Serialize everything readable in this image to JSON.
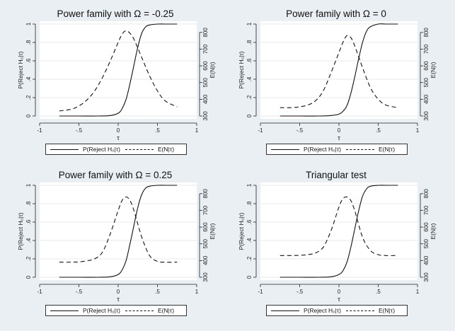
{
  "chart_data": [
    {
      "type": "line",
      "title": "Power family with Ω = -0.25",
      "xlabel": "τ",
      "ylabel_left": "P(Reject H₀|τ)",
      "ylabel_right": "E(N|τ)",
      "xlim": [
        -1,
        1
      ],
      "xticks": [
        "-1",
        "-.5",
        "0",
        ".5",
        "1"
      ],
      "ylim_left": [
        0,
        1
      ],
      "yticks_left": [
        "0",
        ".2",
        ".4",
        ".6",
        ".8",
        "1"
      ],
      "ylim_right": [
        300,
        850
      ],
      "yticks_right": [
        "300",
        "400",
        "500",
        "600",
        "700",
        "800"
      ],
      "grid": true,
      "legend": [
        "P(Reject H₀|τ)",
        "E(N|τ)"
      ],
      "series": [
        {
          "name": "P(Reject H₀|τ)",
          "axis": "left",
          "style": "solid",
          "x": [
            -0.75,
            -0.5,
            -0.25,
            -0.1,
            0,
            0.05,
            0.1,
            0.15,
            0.2,
            0.25,
            0.3,
            0.35,
            0.4,
            0.5,
            0.6,
            0.75
          ],
          "y": [
            0,
            0,
            0,
            0.005,
            0.03,
            0.08,
            0.18,
            0.35,
            0.55,
            0.75,
            0.9,
            0.97,
            0.99,
            1,
            1,
            1
          ]
        },
        {
          "name": "E(N|τ)",
          "axis": "right",
          "style": "dashed",
          "x": [
            -0.75,
            -0.6,
            -0.5,
            -0.4,
            -0.3,
            -0.2,
            -0.1,
            0,
            0.05,
            0.1,
            0.15,
            0.2,
            0.3,
            0.4,
            0.5,
            0.6,
            0.75
          ],
          "y": [
            330,
            340,
            360,
            395,
            450,
            530,
            630,
            740,
            790,
            810,
            795,
            760,
            650,
            540,
            450,
            390,
            355
          ]
        }
      ]
    },
    {
      "type": "line",
      "title": "Power family with Ω = 0",
      "xlabel": "τ",
      "ylabel_left": "P(Reject H₀|τ)",
      "ylabel_right": "E(N|τ)",
      "xlim": [
        -1,
        1
      ],
      "xticks": [
        "-1",
        "-.5",
        "0",
        ".5",
        "1"
      ],
      "ylim_left": [
        0,
        1
      ],
      "yticks_left": [
        "0",
        ".2",
        ".4",
        ".6",
        ".8",
        "1"
      ],
      "ylim_right": [
        300,
        850
      ],
      "yticks_right": [
        "300",
        "400",
        "500",
        "600",
        "700",
        "800"
      ],
      "grid": true,
      "legend": [
        "P(Reject H₀|τ)",
        "E(N|τ)"
      ],
      "series": [
        {
          "name": "P(Reject H₀|τ)",
          "axis": "left",
          "style": "solid",
          "x": [
            -0.75,
            -0.5,
            -0.25,
            -0.1,
            0,
            0.05,
            0.1,
            0.15,
            0.2,
            0.25,
            0.3,
            0.35,
            0.4,
            0.5,
            0.6,
            0.75
          ],
          "y": [
            0,
            0,
            0,
            0.005,
            0.02,
            0.05,
            0.11,
            0.24,
            0.42,
            0.62,
            0.8,
            0.92,
            0.97,
            1,
            1,
            1
          ]
        },
        {
          "name": "E(N|τ)",
          "axis": "right",
          "style": "dashed",
          "x": [
            -0.75,
            -0.6,
            -0.5,
            -0.4,
            -0.3,
            -0.2,
            -0.1,
            0,
            0.05,
            0.1,
            0.15,
            0.2,
            0.3,
            0.4,
            0.5,
            0.6,
            0.75
          ],
          "y": [
            350,
            350,
            355,
            365,
            390,
            450,
            560,
            680,
            740,
            780,
            770,
            720,
            590,
            470,
            400,
            365,
            350
          ]
        }
      ]
    },
    {
      "type": "line",
      "title": "Power family with Ω = 0.25",
      "xlabel": "τ",
      "ylabel_left": "P(Reject H₀|τ)",
      "ylabel_right": "E(N|τ)",
      "xlim": [
        -1,
        1
      ],
      "xticks": [
        "-1",
        "-.5",
        "0",
        ".5",
        "1"
      ],
      "ylim_left": [
        0,
        1
      ],
      "yticks_left": [
        "0",
        ".2",
        ".4",
        ".6",
        ".8",
        "1"
      ],
      "ylim_right": [
        300,
        850
      ],
      "yticks_right": [
        "300",
        "400",
        "500",
        "600",
        "700",
        "800"
      ],
      "grid": true,
      "legend": [
        "P(Reject H₀|τ)",
        "E(N|τ)"
      ],
      "series": [
        {
          "name": "P(Reject H₀|τ)",
          "axis": "left",
          "style": "solid",
          "x": [
            -0.75,
            -0.5,
            -0.25,
            -0.1,
            0,
            0.05,
            0.1,
            0.15,
            0.2,
            0.25,
            0.3,
            0.35,
            0.4,
            0.5,
            0.6,
            0.75
          ],
          "y": [
            0,
            0,
            0,
            0.005,
            0.03,
            0.08,
            0.18,
            0.36,
            0.56,
            0.76,
            0.9,
            0.97,
            0.99,
            1,
            1,
            1
          ]
        },
        {
          "name": "E(N|τ)",
          "axis": "right",
          "style": "dashed",
          "x": [
            -0.75,
            -0.6,
            -0.5,
            -0.4,
            -0.3,
            -0.2,
            -0.1,
            0,
            0.05,
            0.1,
            0.15,
            0.2,
            0.3,
            0.4,
            0.5,
            0.6,
            0.75
          ],
          "y": [
            390,
            390,
            392,
            398,
            410,
            450,
            560,
            700,
            760,
            780,
            760,
            700,
            540,
            430,
            395,
            390,
            390
          ]
        }
      ]
    },
    {
      "type": "line",
      "title": "Triangular test",
      "xlabel": "τ",
      "ylabel_left": "P(Reject H₀|τ)",
      "ylabel_right": "E(N|τ)",
      "xlim": [
        -1,
        1
      ],
      "xticks": [
        "-1",
        "-.5",
        "0",
        ".5",
        "1"
      ],
      "ylim_left": [
        0,
        1
      ],
      "yticks_left": [
        "0",
        ".2",
        ".4",
        ".6",
        ".8",
        "1"
      ],
      "ylim_right": [
        300,
        850
      ],
      "yticks_right": [
        "300",
        "400",
        "500",
        "600",
        "700",
        "800"
      ],
      "grid": true,
      "legend": [
        "P(Reject H₀|τ)",
        "E(N|τ)"
      ],
      "series": [
        {
          "name": "P(Reject H₀|τ)",
          "axis": "left",
          "style": "solid",
          "x": [
            -0.75,
            -0.5,
            -0.25,
            -0.1,
            0,
            0.05,
            0.1,
            0.15,
            0.2,
            0.25,
            0.3,
            0.35,
            0.4,
            0.5,
            0.6,
            0.75
          ],
          "y": [
            0,
            0,
            0,
            0.005,
            0.03,
            0.07,
            0.16,
            0.32,
            0.52,
            0.72,
            0.88,
            0.96,
            0.99,
            1,
            1,
            1
          ]
        },
        {
          "name": "E(N|τ)",
          "axis": "right",
          "style": "dashed",
          "x": [
            -0.75,
            -0.6,
            -0.5,
            -0.4,
            -0.3,
            -0.2,
            -0.1,
            0,
            0.05,
            0.1,
            0.15,
            0.2,
            0.3,
            0.4,
            0.5,
            0.6,
            0.75
          ],
          "y": [
            430,
            430,
            431,
            435,
            445,
            480,
            580,
            720,
            770,
            780,
            760,
            700,
            540,
            460,
            435,
            430,
            430
          ]
        }
      ]
    }
  ]
}
